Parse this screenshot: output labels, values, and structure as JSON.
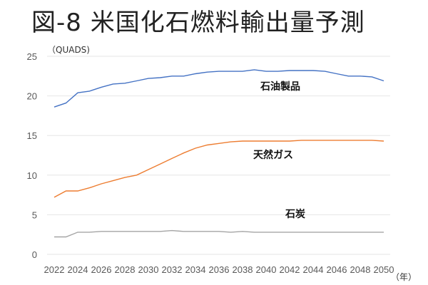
{
  "chart_data": {
    "type": "line",
    "title": "図-8 米国化石燃料輸出量予測",
    "ylabel": "（QUADS)",
    "xlabel": "（年）",
    "ylim": [
      0,
      25
    ],
    "yticks": [
      0,
      5,
      10,
      15,
      20,
      25
    ],
    "grid": true,
    "x": [
      2022,
      2023,
      2024,
      2025,
      2026,
      2027,
      2028,
      2029,
      2030,
      2031,
      2032,
      2033,
      2034,
      2035,
      2036,
      2037,
      2038,
      2039,
      2040,
      2041,
      2042,
      2043,
      2044,
      2045,
      2046,
      2047,
      2048,
      2049,
      2050
    ],
    "xtick_labels": [
      "2022",
      "2024",
      "2026",
      "2028",
      "2030",
      "2032",
      "2034",
      "2036",
      "2038",
      "2040",
      "2042",
      "2044",
      "2046",
      "2048",
      "2050"
    ],
    "series": [
      {
        "name": "石油製品",
        "color": "#4472C4",
        "values": [
          18.6,
          19.1,
          20.4,
          20.6,
          21.1,
          21.5,
          21.6,
          21.9,
          22.2,
          22.3,
          22.5,
          22.5,
          22.8,
          23.0,
          23.1,
          23.1,
          23.1,
          23.3,
          23.1,
          23.1,
          23.2,
          23.2,
          23.2,
          23.1,
          22.8,
          22.5,
          22.5,
          22.4,
          21.9
        ]
      },
      {
        "name": "天然ガス",
        "color": "#ED7D31",
        "values": [
          7.2,
          8.0,
          8.0,
          8.4,
          8.9,
          9.3,
          9.7,
          10.0,
          10.7,
          11.4,
          12.1,
          12.8,
          13.4,
          13.8,
          14.0,
          14.2,
          14.3,
          14.3,
          14.3,
          14.3,
          14.3,
          14.4,
          14.4,
          14.4,
          14.4,
          14.4,
          14.4,
          14.4,
          14.3
        ]
      },
      {
        "name": "石炭",
        "color": "#A5A5A5",
        "values": [
          2.2,
          2.2,
          2.8,
          2.8,
          2.9,
          2.9,
          2.9,
          2.9,
          2.9,
          2.9,
          3.0,
          2.9,
          2.9,
          2.9,
          2.9,
          2.8,
          2.9,
          2.8,
          2.8,
          2.8,
          2.8,
          2.8,
          2.8,
          2.8,
          2.8,
          2.8,
          2.8,
          2.8,
          2.8
        ]
      }
    ]
  }
}
